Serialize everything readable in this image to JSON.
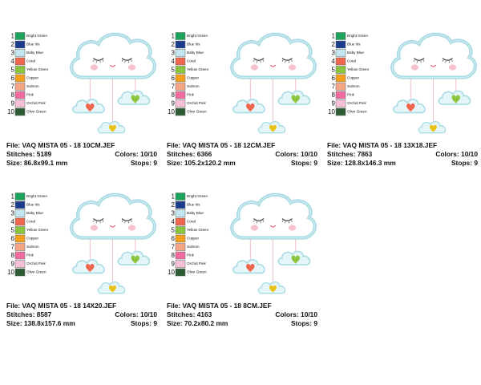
{
  "panels": [
    {
      "colors": [
        {
          "number": 1,
          "name": "Bright Green",
          "color": "#1aa35a"
        },
        {
          "number": 2,
          "name": "Blue Iris",
          "color": "#1b3c8f"
        },
        {
          "number": 3,
          "name": "Baby Blue",
          "color": "#c4e6f2"
        },
        {
          "number": 4,
          "name": "Coral",
          "color": "#f0664e"
        },
        {
          "number": 5,
          "name": "Yellow Green",
          "color": "#8cc63f"
        },
        {
          "number": 6,
          "name": "Copper",
          "color": "#f2a01c"
        },
        {
          "number": 7,
          "name": "Salmon",
          "color": "#f6a585"
        },
        {
          "number": 8,
          "name": "Pink",
          "color": "#f06ba0"
        },
        {
          "number": 9,
          "name": "Orchid Pink",
          "color": "#f8bfd8"
        },
        {
          "number": 10,
          "name": "Olive Green",
          "color": "#2e5b36"
        }
      ],
      "file": "File: VAQ MISTA 05 - 18 10CM.JEF",
      "stitches": "Stitches: 5189",
      "colors_count": "Colors: 10/10",
      "size": "Size: 86.8x99.1 mm",
      "stops": "Stops: 9"
    },
    {
      "colors": [
        {
          "number": 1,
          "name": "Bright Green",
          "color": "#1aa35a"
        },
        {
          "number": 2,
          "name": "Blue Iris",
          "color": "#1b3c8f"
        },
        {
          "number": 3,
          "name": "Baby Blue",
          "color": "#c4e6f2"
        },
        {
          "number": 4,
          "name": "Coral",
          "color": "#f0664e"
        },
        {
          "number": 5,
          "name": "Yellow Green",
          "color": "#8cc63f"
        },
        {
          "number": 6,
          "name": "Copper",
          "color": "#f2a01c"
        },
        {
          "number": 7,
          "name": "Salmon",
          "color": "#f6a585"
        },
        {
          "number": 8,
          "name": "Pink",
          "color": "#f06ba0"
        },
        {
          "number": 9,
          "name": "Orchid Pink",
          "color": "#f8bfd8"
        },
        {
          "number": 10,
          "name": "Olive Green",
          "color": "#2e5b36"
        }
      ],
      "file": "File: VAQ MISTA 05 - 18 12CM.JEF",
      "stitches": "Stitches: 6366",
      "colors_count": "Colors: 10/10",
      "size": "Size: 105.2x120.2 mm",
      "stops": "Stops: 9"
    },
    {
      "colors": [
        {
          "number": 1,
          "name": "Bright Green",
          "color": "#1aa35a"
        },
        {
          "number": 2,
          "name": "Blue Iris",
          "color": "#1b3c8f"
        },
        {
          "number": 3,
          "name": "Baby Blue",
          "color": "#c4e6f2"
        },
        {
          "number": 4,
          "name": "Coral",
          "color": "#f0664e"
        },
        {
          "number": 5,
          "name": "Yellow Green",
          "color": "#8cc63f"
        },
        {
          "number": 6,
          "name": "Copper",
          "color": "#f2a01c"
        },
        {
          "number": 7,
          "name": "Salmon",
          "color": "#f6a585"
        },
        {
          "number": 8,
          "name": "Pink",
          "color": "#f06ba0"
        },
        {
          "number": 9,
          "name": "Orchid Pink",
          "color": "#f8bfd8"
        },
        {
          "number": 10,
          "name": "Olive Green",
          "color": "#2e5b36"
        }
      ],
      "file": "File: VAQ MISTA 05 - 18 13X18.JEF",
      "stitches": "Stitches: 7863",
      "colors_count": "Colors: 10/10",
      "size": "Size: 128.8x146.3 mm",
      "stops": "Stops: 9"
    },
    {
      "colors": [
        {
          "number": 1,
          "name": "Bright Green",
          "color": "#1aa35a"
        },
        {
          "number": 2,
          "name": "Blue Iris",
          "color": "#1b3c8f"
        },
        {
          "number": 3,
          "name": "Baby Blue",
          "color": "#c4e6f2"
        },
        {
          "number": 4,
          "name": "Coral",
          "color": "#f0664e"
        },
        {
          "number": 5,
          "name": "Yellow Green",
          "color": "#8cc63f"
        },
        {
          "number": 6,
          "name": "Copper",
          "color": "#f2a01c"
        },
        {
          "number": 7,
          "name": "Salmon",
          "color": "#f6a585"
        },
        {
          "number": 8,
          "name": "Pink",
          "color": "#f06ba0"
        },
        {
          "number": 9,
          "name": "Orchid Pink",
          "color": "#f8bfd8"
        },
        {
          "number": 10,
          "name": "Olive Green",
          "color": "#2e5b36"
        }
      ],
      "file": "File: VAQ MISTA 05 - 18 14X20.JEF",
      "stitches": "Stitches: 8587",
      "colors_count": "Colors: 10/10",
      "size": "Size: 138.8x157.6 mm",
      "stops": "Stops: 9"
    },
    {
      "colors": [
        {
          "number": 1,
          "name": "Bright Green",
          "color": "#1aa35a"
        },
        {
          "number": 2,
          "name": "Blue Iris",
          "color": "#1b3c8f"
        },
        {
          "number": 3,
          "name": "Baby Blue",
          "color": "#c4e6f2"
        },
        {
          "number": 4,
          "name": "Coral",
          "color": "#f0664e"
        },
        {
          "number": 5,
          "name": "Yellow Green",
          "color": "#8cc63f"
        },
        {
          "number": 6,
          "name": "Copper",
          "color": "#f2a01c"
        },
        {
          "number": 7,
          "name": "Salmon",
          "color": "#f6a585"
        },
        {
          "number": 8,
          "name": "Pink",
          "color": "#f06ba0"
        },
        {
          "number": 9,
          "name": "Orchid Pink",
          "color": "#f8bfd8"
        },
        {
          "number": 10,
          "name": "Olive Green",
          "color": "#2e5b36"
        }
      ],
      "file": "File: VAQ MISTA 05 - 18 8CM.JEF",
      "stitches": "Stitches: 4163",
      "colors_count": "Colors: 10/10",
      "size": "Size: 70.2x80.2 mm",
      "stops": "Stops: 9"
    }
  ]
}
